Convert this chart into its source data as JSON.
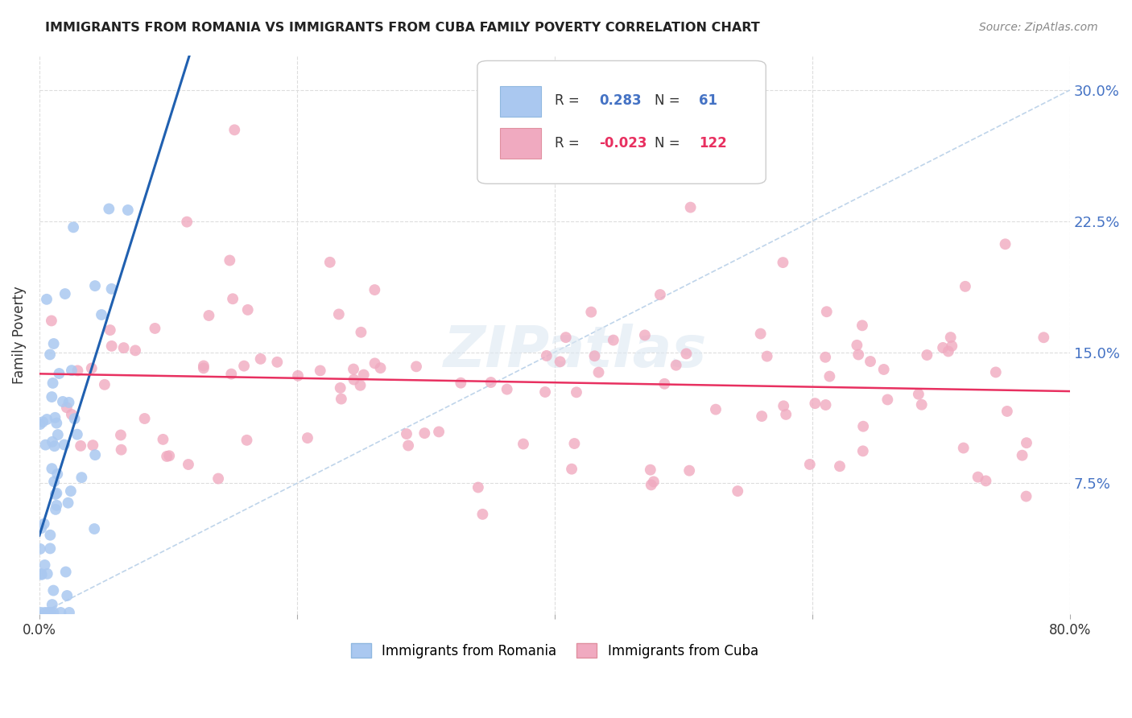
{
  "title": "IMMIGRANTS FROM ROMANIA VS IMMIGRANTS FROM CUBA FAMILY POVERTY CORRELATION CHART",
  "source": "Source: ZipAtlas.com",
  "ylabel": "Family Poverty",
  "ytick_values": [
    7.5,
    15.0,
    22.5,
    30.0
  ],
  "ytick_labels": [
    "7.5%",
    "15.0%",
    "22.5%",
    "30.0%"
  ],
  "xlim": [
    0.0,
    80.0
  ],
  "ylim": [
    0.0,
    32.0
  ],
  "romania_R": 0.283,
  "romania_N": 61,
  "cuba_R": -0.023,
  "cuba_N": 122,
  "romania_color": "#aac8f0",
  "cuba_color": "#f0aac0",
  "romania_line_color": "#2060b0",
  "cuba_line_color": "#e83060",
  "diagonal_color": "#b8d0e8",
  "legend_romania_label": "Immigrants from Romania",
  "legend_cuba_label": "Immigrants from Cuba",
  "romania_seed": 7,
  "cuba_seed": 42
}
